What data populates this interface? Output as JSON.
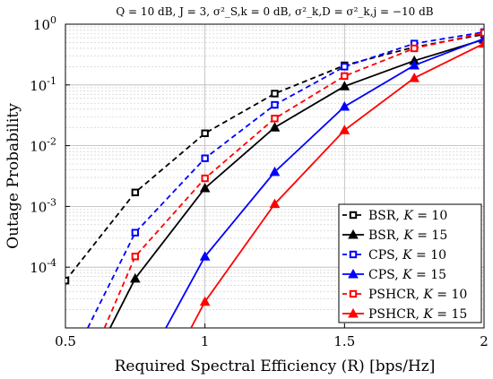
{
  "chart_data": {
    "type": "line",
    "title": "Q = 10 dB, J = 3, σ²_S,k = 0 dB, σ²_k,D = σ²_k,j = −10 dB",
    "xlabel": "Required Spectral Efficiency (R) [bps/Hz]",
    "ylabel": "Outage Probability",
    "xlim": [
      0.5,
      2
    ],
    "ylim": [
      1e-05,
      1
    ],
    "yscale": "log",
    "grid": true,
    "legend_position": "bottom-right",
    "x_ticks": [
      "0.5",
      "1",
      "1.5",
      "2"
    ],
    "y_ticks": [
      {
        "base": "10",
        "exp": "0",
        "value": 1
      },
      {
        "base": "10",
        "exp": "-1",
        "value": 0.1
      },
      {
        "base": "10",
        "exp": "-2",
        "value": 0.01
      },
      {
        "base": "10",
        "exp": "-3",
        "value": 0.001
      },
      {
        "base": "10",
        "exp": "-4",
        "value": 0.0001
      }
    ],
    "series": [
      {
        "name": "BSR, K = 10",
        "scheme": "BSR",
        "K": "10",
        "color": "#000000",
        "marker": "square",
        "dash": true,
        "x": [
          0.5,
          0.75,
          1.0,
          1.25,
          1.5,
          1.75,
          2.0
        ],
        "y": [
          6e-05,
          0.0017,
          0.016,
          0.072,
          0.21,
          0.42,
          0.68
        ]
      },
      {
        "name": "BSR, K = 15",
        "scheme": "BSR",
        "K": "15",
        "color": "#000000",
        "marker": "triangle",
        "dash": false,
        "x": [
          0.66,
          0.75,
          1.0,
          1.25,
          1.5,
          1.75,
          2.0
        ],
        "y": [
          1e-05,
          6.5e-05,
          0.002,
          0.02,
          0.095,
          0.25,
          0.56
        ]
      },
      {
        "name": "CPS, K = 10",
        "scheme": "CPS",
        "K": "10",
        "color": "#0000ff",
        "marker": "square",
        "dash": true,
        "x": [
          0.58,
          0.75,
          1.0,
          1.25,
          1.5,
          1.75,
          2.0
        ],
        "y": [
          1e-05,
          0.00037,
          0.0062,
          0.047,
          0.2,
          0.48,
          0.74
        ]
      },
      {
        "name": "CPS, K = 15",
        "scheme": "CPS",
        "K": "15",
        "color": "#0000ff",
        "marker": "triangle",
        "dash": false,
        "x": [
          0.86,
          1.0,
          1.25,
          1.5,
          1.75,
          2.0
        ],
        "y": [
          1e-05,
          0.00015,
          0.0037,
          0.044,
          0.21,
          0.58
        ]
      },
      {
        "name": "PSHCR, K = 10",
        "scheme": "PSHCR",
        "K": "10",
        "color": "#ff0000",
        "marker": "square",
        "dash": true,
        "x": [
          0.64,
          0.75,
          1.0,
          1.25,
          1.5,
          1.75,
          2.0
        ],
        "y": [
          1e-05,
          0.00015,
          0.0029,
          0.028,
          0.14,
          0.4,
          0.72
        ]
      },
      {
        "name": "PSHCR, K = 15",
        "scheme": "PSHCR",
        "K": "15",
        "color": "#ff0000",
        "marker": "triangle",
        "dash": false,
        "x": [
          0.95,
          1.0,
          1.25,
          1.5,
          1.75,
          2.0
        ],
        "y": [
          1e-05,
          2.7e-05,
          0.0011,
          0.018,
          0.13,
          0.48
        ]
      }
    ]
  }
}
